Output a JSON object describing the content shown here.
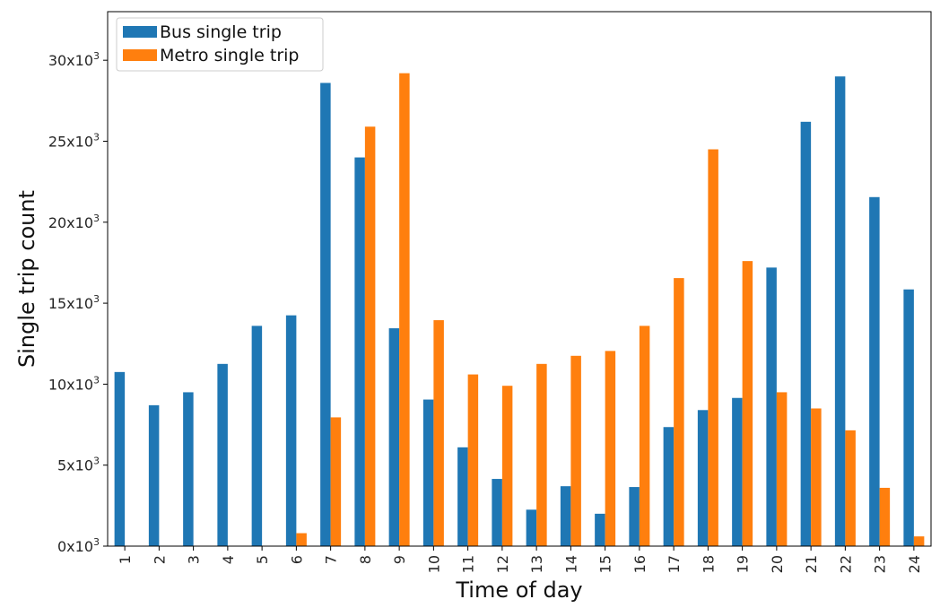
{
  "chart_data": {
    "type": "bar",
    "xlabel": "Time of day",
    "ylabel": "Single trip count",
    "categories": [
      "1",
      "2",
      "3",
      "4",
      "5",
      "6",
      "7",
      "8",
      "9",
      "10",
      "11",
      "12",
      "13",
      "14",
      "15",
      "16",
      "17",
      "18",
      "19",
      "20",
      "21",
      "22",
      "23",
      "24"
    ],
    "series": [
      {
        "name": "Bus single trip",
        "color": "#1f77b4",
        "values": [
          10750,
          8700,
          9500,
          11250,
          13600,
          14250,
          28600,
          24000,
          13450,
          9050,
          6100,
          4150,
          2250,
          3700,
          2000,
          3650,
          7350,
          8400,
          9150,
          17200,
          26200,
          29000,
          21550,
          15850
        ]
      },
      {
        "name": "Metro single trip",
        "color": "#ff7f0e",
        "values": [
          0,
          0,
          0,
          0,
          0,
          800,
          7950,
          25900,
          29200,
          13950,
          10600,
          9900,
          11250,
          11750,
          12050,
          13600,
          16550,
          24500,
          17600,
          9500,
          8500,
          7150,
          3600,
          600
        ]
      }
    ],
    "ylim": [
      0,
      33000
    ],
    "yticks": [
      {
        "value": 0,
        "mantissa": "0x10",
        "exp": "3"
      },
      {
        "value": 5000,
        "mantissa": "5x10",
        "exp": "3"
      },
      {
        "value": 10000,
        "mantissa": "10x10",
        "exp": "3"
      },
      {
        "value": 15000,
        "mantissa": "15x10",
        "exp": "3"
      },
      {
        "value": 20000,
        "mantissa": "20x10",
        "exp": "3"
      },
      {
        "value": 25000,
        "mantissa": "25x10",
        "exp": "3"
      },
      {
        "value": 30000,
        "mantissa": "30x10",
        "exp": "3"
      }
    ],
    "grid": false,
    "legend_position": "top-left"
  }
}
